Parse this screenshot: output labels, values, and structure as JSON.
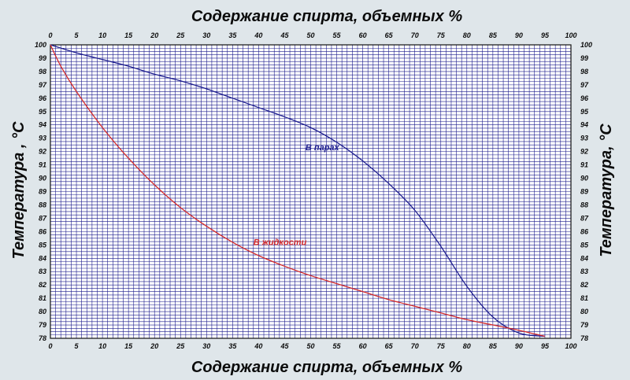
{
  "chart_data": {
    "type": "line",
    "title_top": "Содержание спирта, объемных %",
    "title_bottom": "Содержание спирта, объемных %",
    "ylabel_left": "Температура , °С",
    "ylabel_right": "Температура, °С",
    "xlim": [
      0,
      100
    ],
    "ylim": [
      78,
      100
    ],
    "x_ticks": [
      0,
      5,
      10,
      15,
      20,
      25,
      30,
      35,
      40,
      45,
      50,
      55,
      60,
      65,
      70,
      75,
      80,
      85,
      90,
      95,
      100
    ],
    "y_ticks": [
      78,
      79,
      80,
      81,
      82,
      83,
      84,
      85,
      86,
      87,
      88,
      89,
      90,
      91,
      92,
      93,
      94,
      95,
      96,
      97,
      98,
      99,
      100
    ],
    "grid": true,
    "colors": {
      "background": "#dfe6ea",
      "plot_area": "#ffffff",
      "grid": "#1a1a8c",
      "vapor": "#1f1f8f",
      "liquid": "#d42a2a"
    },
    "series": [
      {
        "name": "В парах",
        "color": "#1f1f8f",
        "x": [
          0,
          5,
          10,
          15,
          20,
          25,
          30,
          35,
          40,
          45,
          50,
          55,
          60,
          65,
          70,
          75,
          80,
          85,
          90,
          95
        ],
        "y": [
          100,
          99.4,
          98.9,
          98.4,
          97.8,
          97.3,
          96.7,
          96.0,
          95.3,
          94.6,
          93.8,
          92.7,
          91.3,
          89.6,
          87.6,
          84.9,
          81.9,
          79.6,
          78.4,
          78.15
        ]
      },
      {
        "name": "В жидкости",
        "color": "#d42a2a",
        "x": [
          0,
          2,
          5,
          10,
          15,
          20,
          25,
          30,
          35,
          40,
          45,
          50,
          55,
          60,
          65,
          70,
          75,
          80,
          85,
          90,
          95
        ],
        "y": [
          100,
          98.4,
          96.5,
          93.8,
          91.5,
          89.5,
          87.8,
          86.4,
          85.2,
          84.2,
          83.4,
          82.7,
          82.1,
          81.5,
          80.9,
          80.4,
          79.9,
          79.4,
          79.0,
          78.6,
          78.15
        ]
      }
    ],
    "annotations": [
      {
        "text": "В парах",
        "x": 49,
        "y": 92.1,
        "color": "#1f1f8f"
      },
      {
        "text": "В жидкости",
        "x": 39,
        "y": 85.0,
        "color": "#d42a2a"
      }
    ]
  }
}
